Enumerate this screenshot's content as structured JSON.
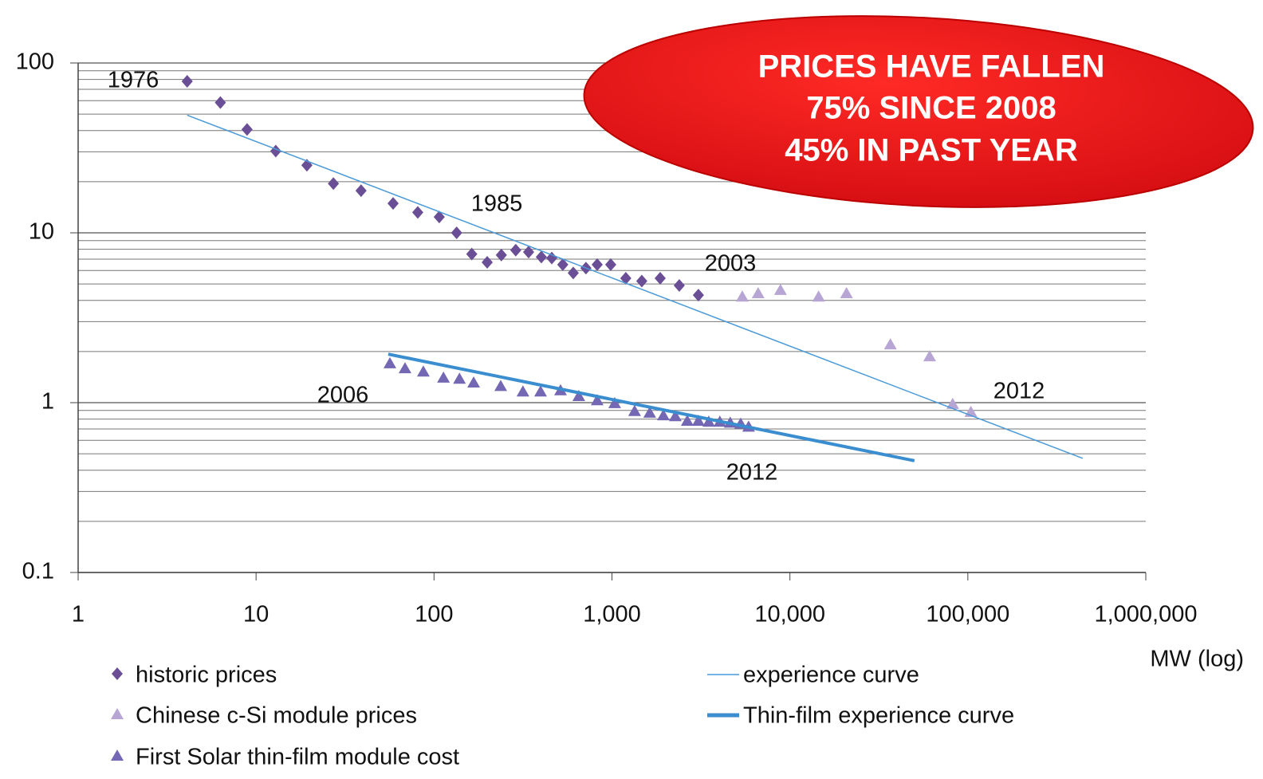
{
  "chart_data": {
    "type": "scatter",
    "log_x": true,
    "log_y": true,
    "grid": true,
    "minor_grid": true,
    "xlim": [
      1,
      1000000
    ],
    "xticks": [
      1,
      10,
      100,
      {
        "value": 1000,
        "label": "1,000"
      },
      {
        "value": 10000,
        "label": "10,000"
      },
      {
        "value": 100000,
        "label": "100,000"
      },
      {
        "value": 1000000,
        "label": "1,000,000"
      }
    ],
    "ylim": [
      0.1,
      100
    ],
    "yticks": [
      0.1,
      1,
      10,
      100
    ],
    "x_label": "MW (log)",
    "callout": [
      "PRICES HAVE FALLEN",
      "75% SINCE 2008",
      "45% IN PAST YEAR"
    ],
    "annotations": [
      "1976",
      "1985",
      "2003",
      "2006",
      "2012",
      "2012"
    ],
    "series": [
      {
        "name": "historic prices",
        "color": "#6b4f96",
        "marker": "diamond",
        "x": [
          4.1,
          6.3,
          8.9,
          12.9,
          19.3,
          27.2,
          38.9,
          58.9,
          81,
          107,
          134,
          163,
          199,
          239,
          288,
          340,
          401,
          459,
          529,
          606,
          714,
          826,
          984,
          1196,
          1471,
          1866,
          2389,
          3060
        ],
        "values": [
          78,
          58.5,
          40.6,
          30.3,
          25,
          19.5,
          17.7,
          14.9,
          13.2,
          12.4,
          10,
          7.5,
          6.7,
          7.4,
          7.9,
          7.7,
          7.2,
          7.1,
          6.5,
          5.8,
          6.2,
          6.5,
          6.5,
          5.4,
          5.2,
          5.4,
          4.9,
          4.3
        ]
      },
      {
        "name": "Chinese c-Si module prices",
        "color": "#b7a5d3",
        "marker": "triangle",
        "x": [
          5400,
          6630,
          8850,
          14500,
          20800,
          36700,
          61000,
          82200,
          104000
        ],
        "values": [
          4.2,
          4.4,
          4.6,
          4.2,
          4.4,
          2.2,
          1.87,
          0.98,
          0.88
        ]
      },
      {
        "name": "First Solar thin-film module cost",
        "color": "#7467b3",
        "marker": "triangle",
        "x": [
          56.5,
          68.7,
          87.1,
          113,
          139,
          167,
          237,
          316,
          397,
          514,
          651,
          826,
          1036,
          1340,
          1630,
          1945,
          2270,
          2650,
          3060,
          3500,
          4040,
          4620,
          5290,
          5860
        ],
        "values": [
          1.7,
          1.59,
          1.52,
          1.4,
          1.38,
          1.31,
          1.25,
          1.16,
          1.16,
          1.18,
          1.09,
          1.03,
          0.99,
          0.89,
          0.87,
          0.84,
          0.83,
          0.78,
          0.78,
          0.77,
          0.77,
          0.76,
          0.75,
          0.72
        ]
      },
      {
        "name": "experience curve",
        "color": "#4a9ad8",
        "marker": "line",
        "x": [
          4.1,
          442000
        ],
        "values": [
          49.3,
          0.47
        ]
      },
      {
        "name": "Thin-film experience curve",
        "color": "#3a8ed0",
        "marker": "thick-line",
        "x": [
          55.3,
          50100
        ],
        "values": [
          1.93,
          0.455
        ]
      }
    ]
  }
}
